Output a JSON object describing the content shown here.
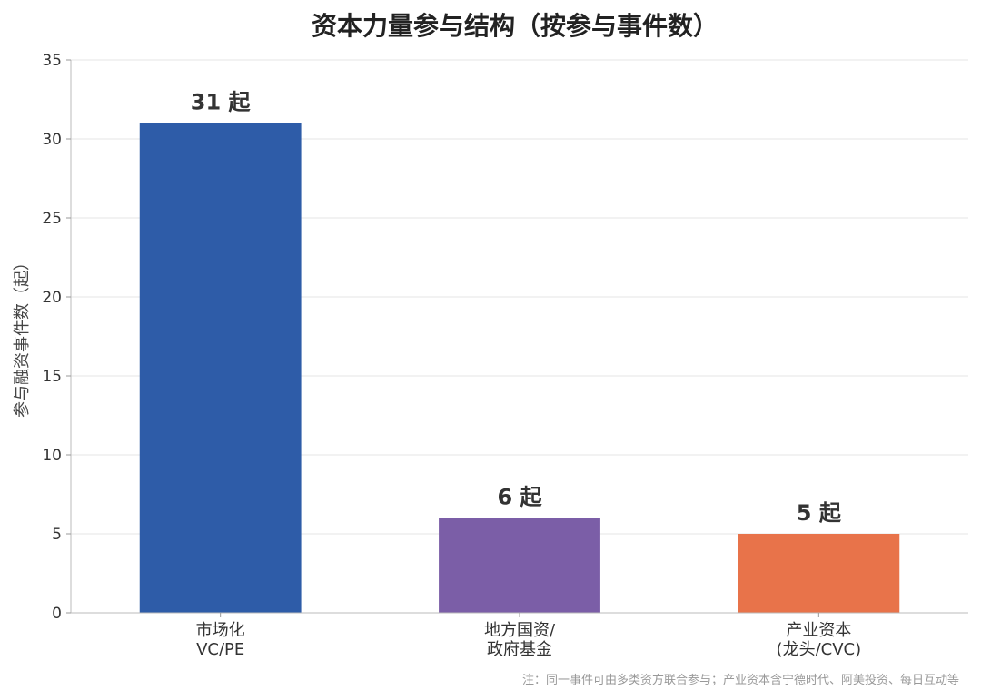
{
  "chart_data": {
    "type": "bar",
    "title": "资本力量参与结构（按参与事件数）",
    "ylabel": "参与融资事件数（起）",
    "xlabel": "",
    "ylim": [
      0,
      35
    ],
    "yticks": [
      0,
      5,
      10,
      15,
      20,
      25,
      30,
      35
    ],
    "grid": true,
    "categories": [
      [
        "市场化",
        "VC/PE"
      ],
      [
        "地方国资/",
        "政府基金"
      ],
      [
        "产业资本",
        "(龙头/CVC)"
      ]
    ],
    "values": [
      31,
      6,
      5
    ],
    "data_labels": [
      "31 起",
      "6 起",
      "5 起"
    ],
    "colors": [
      "#2e5ca8",
      "#7b5ea7",
      "#e8734a"
    ],
    "note": "注：同一事件可由多类资方联合参与；产业资本含宁德时代、阿美投资、每日互动等"
  }
}
